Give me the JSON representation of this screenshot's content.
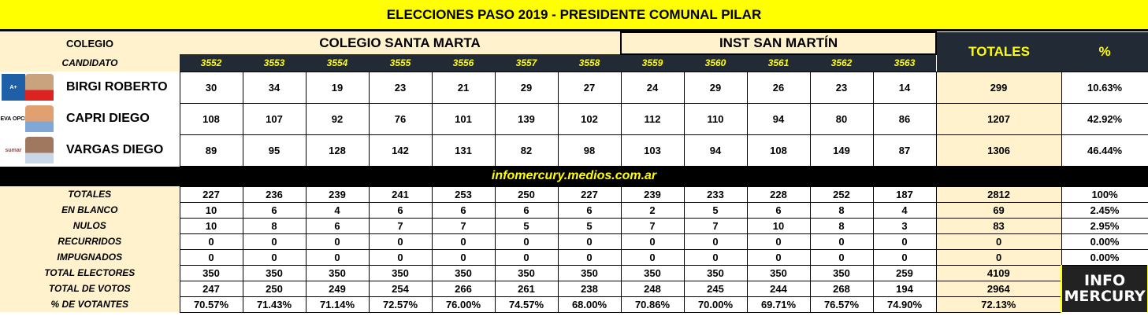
{
  "title": "ELECCIONES PASO 2019 - PRESIDENTE COMUNAL PILAR",
  "header": {
    "colegio_label": "COLEGIO",
    "candidato_label": "CANDIDATO",
    "schools": [
      "COLEGIO SANTA MARTA",
      "INST SAN MARTÍN"
    ],
    "totales_label": "TOTALES",
    "pct_label": "%",
    "mesas": [
      "3552",
      "3553",
      "3554",
      "3555",
      "3556",
      "3557",
      "3558",
      "3559",
      "3560",
      "3561",
      "3562",
      "3563"
    ]
  },
  "candidates": [
    {
      "name": "BIRGI ROBERTO",
      "logo": "A+",
      "logo_color": "#1f5fa8",
      "values": [
        "30",
        "34",
        "19",
        "23",
        "21",
        "29",
        "27",
        "24",
        "29",
        "26",
        "23",
        "14"
      ],
      "total": "299",
      "pct": "10.63%"
    },
    {
      "name": "CAPRI DIEGO",
      "logo": "NUEVA OPCIÓN",
      "logo_color": "#ffffff",
      "values": [
        "108",
        "107",
        "92",
        "76",
        "101",
        "139",
        "102",
        "112",
        "110",
        "94",
        "80",
        "86"
      ],
      "total": "1207",
      "pct": "42.92%"
    },
    {
      "name": "VARGAS DIEGO",
      "logo": "sumar",
      "logo_color": "#ffffff",
      "values": [
        "89",
        "95",
        "128",
        "142",
        "131",
        "82",
        "98",
        "103",
        "94",
        "108",
        "149",
        "87"
      ],
      "total": "1306",
      "pct": "46.44%"
    }
  ],
  "band_text": "infomercury.medios.com.ar",
  "summary": [
    {
      "label": "TOTALES",
      "values": [
        "227",
        "236",
        "239",
        "241",
        "253",
        "250",
        "227",
        "239",
        "233",
        "228",
        "252",
        "187"
      ],
      "total": "2812",
      "pct": "100%"
    },
    {
      "label": "EN BLANCO",
      "values": [
        "10",
        "6",
        "4",
        "6",
        "6",
        "6",
        "6",
        "2",
        "5",
        "6",
        "8",
        "4"
      ],
      "total": "69",
      "pct": "2.45%"
    },
    {
      "label": "NULOS",
      "values": [
        "10",
        "8",
        "6",
        "7",
        "7",
        "5",
        "5",
        "7",
        "7",
        "10",
        "8",
        "3"
      ],
      "total": "83",
      "pct": "2.95%"
    },
    {
      "label": "RECURRIDOS",
      "values": [
        "0",
        "0",
        "0",
        "0",
        "0",
        "0",
        "0",
        "0",
        "0",
        "0",
        "0",
        "0"
      ],
      "total": "0",
      "pct": "0.00%"
    },
    {
      "label": "IMPUGNADOS",
      "values": [
        "0",
        "0",
        "0",
        "0",
        "0",
        "0",
        "0",
        "0",
        "0",
        "0",
        "0",
        "0"
      ],
      "total": "0",
      "pct": "0.00%"
    },
    {
      "label": "TOTAL ELECTORES",
      "values": [
        "350",
        "350",
        "350",
        "350",
        "350",
        "350",
        "350",
        "350",
        "350",
        "350",
        "350",
        "259"
      ],
      "total": "4109"
    },
    {
      "label": "TOTAL DE VOTOS",
      "values": [
        "247",
        "250",
        "249",
        "254",
        "266",
        "261",
        "238",
        "248",
        "245",
        "244",
        "268",
        "194"
      ],
      "total": "2964"
    },
    {
      "label": "% DE VOTANTES",
      "values": [
        "70.57%",
        "71.43%",
        "71.14%",
        "72.57%",
        "76.00%",
        "74.57%",
        "68.00%",
        "70.86%",
        "70.00%",
        "69.71%",
        "76.57%",
        "74.90%"
      ],
      "total": "72.13%"
    }
  ],
  "brand": {
    "line1": "INFO",
    "line2": "MERCURY"
  },
  "colors": {
    "title_bg": "#ffff00",
    "header_dark": "#222a35",
    "cream": "#fff2cc",
    "accent_text": "#ffff00"
  }
}
